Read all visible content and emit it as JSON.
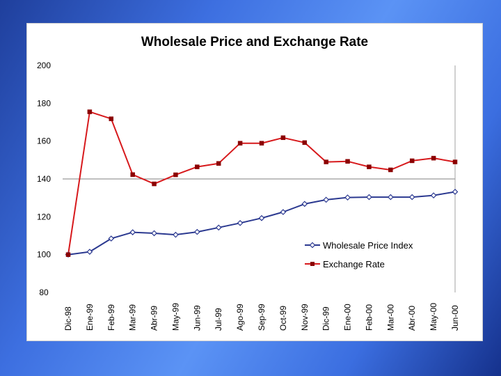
{
  "chart_data": {
    "type": "line",
    "title": "Wholesale Price and Exchange Rate",
    "xlabel": "",
    "ylabel": "",
    "ylim": [
      80,
      200
    ],
    "yticks": [
      80,
      100,
      120,
      140,
      160,
      180,
      200
    ],
    "gridlines": [
      140
    ],
    "legend_position": "bottom-right",
    "categories": [
      "Dic-98",
      "Ene-99",
      "Feb-99",
      "Mar-99",
      "Abr-99",
      "May-99",
      "Jun-99",
      "Jul-99",
      "Ago-99",
      "Sep-99",
      "Oct-99",
      "Nov-99",
      "Dic-99",
      "Ene-00",
      "Feb-00",
      "Mar-00",
      "Abr-00",
      "May-00",
      "Jun-00"
    ],
    "series": [
      {
        "name": "Wholesale Price Index",
        "color": "#2b3990",
        "marker": "diamond-open",
        "values": [
          100,
          101.5,
          108.5,
          111.8,
          111.3,
          110.5,
          112,
          114.3,
          116.7,
          119.3,
          122.5,
          126.8,
          129,
          130.2,
          130.4,
          130.4,
          130.4,
          131.3,
          133.2
        ]
      },
      {
        "name": "Exchange Rate",
        "color": "#d7191c",
        "marker": "square-filled",
        "values": [
          100,
          175.5,
          171.8,
          142.3,
          137.4,
          142.2,
          146.4,
          148.2,
          158.9,
          158.9,
          161.8,
          159.2,
          149,
          149.3,
          146.4,
          144.8,
          149.6,
          151,
          149
        ]
      }
    ]
  }
}
